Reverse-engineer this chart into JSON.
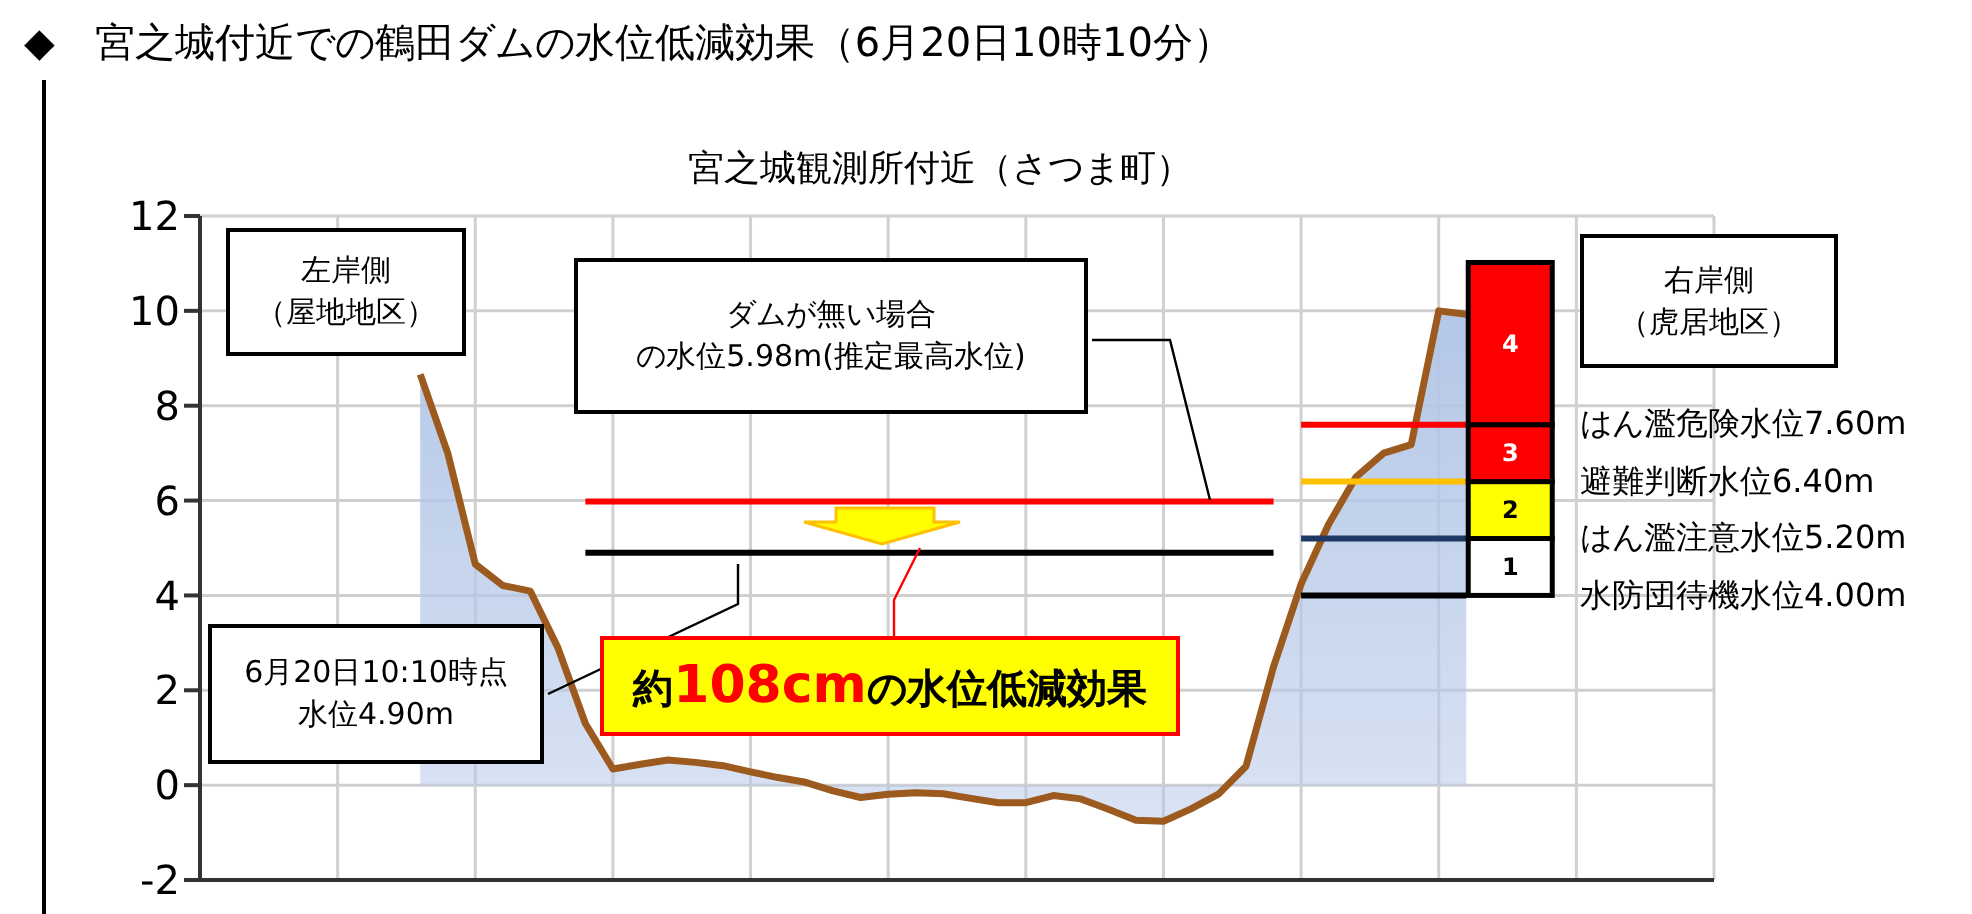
{
  "chart_data": {
    "type": "line",
    "title": "◆　宮之城付近での鶴田ダムの水位低減効果（6月20日10時10分）",
    "subtitle": "宮之城観測所付近（さつま町）",
    "annotations": [
      "左岸側",
      "（屋地地区）",
      "右岸側",
      "（虎居地区）",
      "ダムが無い場合",
      "の水位5.98m(推定最高水位)",
      "6月20日10:10時点",
      "水位4.90m",
      "約108cmの水位低減効果",
      "1",
      "2",
      "3",
      "4"
    ],
    "categories": [
      null,
      null,
      null,
      null,
      null,
      null,
      null,
      null,
      null,
      null,
      null,
      null,
      null,
      null,
      null,
      null,
      null,
      null,
      null,
      null,
      null,
      null,
      null,
      null,
      null,
      null,
      null,
      null,
      null,
      null,
      null,
      null,
      null,
      null,
      null,
      null,
      null,
      null,
      null
    ],
    "ylim": [
      -2,
      12
    ],
    "yticks": [
      -2,
      0,
      2,
      4,
      6,
      8,
      10,
      12
    ],
    "grid": true,
    "tick_labels": "y",
    "marker": "none",
    "series": [
      {
        "type": "area",
        "color": "#9c5a1e",
        "values": [
          8.66,
          7.0,
          4.66,
          4.21,
          4.09,
          2.9,
          1.3,
          0.34,
          0.44,
          0.53,
          0.48,
          0.41,
          0.28,
          0.16,
          0.06,
          -0.12,
          -0.26,
          -0.19,
          -0.16,
          -0.18,
          -0.28,
          -0.37,
          -0.37,
          -0.22,
          -0.29,
          -0.51,
          -0.74,
          -0.76,
          -0.5,
          -0.19,
          0.4,
          2.5,
          4.24,
          5.5,
          6.5,
          7.0,
          7.18,
          10.0,
          9.93
        ]
      },
      {
        "color": "#ff0000",
        "values": [
          null,
          null,
          null,
          null,
          null,
          null,
          5.98,
          5.98,
          5.98,
          5.98,
          5.98,
          5.98,
          5.98,
          5.98,
          5.98,
          5.98,
          5.98,
          5.98,
          5.98,
          5.98,
          5.98,
          5.98,
          5.98,
          5.98,
          5.98,
          5.98,
          5.98,
          5.98,
          5.98,
          5.98,
          5.98,
          5.98,
          null,
          null,
          null,
          null,
          null,
          null,
          null
        ]
      },
      {
        "color": "#000000",
        "values": [
          null,
          null,
          null,
          null,
          null,
          null,
          4.9,
          4.9,
          4.9,
          4.9,
          4.9,
          4.9,
          4.9,
          4.9,
          4.9,
          4.9,
          4.9,
          4.9,
          4.9,
          4.9,
          4.9,
          4.9,
          4.9,
          4.9,
          4.9,
          4.9,
          4.9,
          4.9,
          4.9,
          4.9,
          4.9,
          4.9,
          null,
          null,
          null,
          null,
          null,
          null,
          null
        ]
      },
      {
        "name": "はん濫危険水位7.60m",
        "color": "#ff0000",
        "values": [
          null,
          null,
          null,
          null,
          null,
          null,
          null,
          null,
          null,
          null,
          null,
          null,
          null,
          null,
          null,
          null,
          null,
          null,
          null,
          null,
          null,
          null,
          null,
          null,
          null,
          null,
          null,
          null,
          null,
          null,
          null,
          null,
          7.6,
          7.6,
          7.6,
          7.6,
          7.6,
          7.6,
          7.6
        ]
      },
      {
        "name": "避難判断水位6.40m",
        "color": "#ffc000",
        "values": [
          null,
          null,
          null,
          null,
          null,
          null,
          null,
          null,
          null,
          null,
          null,
          null,
          null,
          null,
          null,
          null,
          null,
          null,
          null,
          null,
          null,
          null,
          null,
          null,
          null,
          null,
          null,
          null,
          null,
          null,
          null,
          null,
          6.4,
          6.4,
          6.4,
          6.4,
          6.4,
          6.4,
          6.4
        ]
      },
      {
        "name": "はん濫注意水位5.20m",
        "color": "#1f3864",
        "values": [
          null,
          null,
          null,
          null,
          null,
          null,
          null,
          null,
          null,
          null,
          null,
          null,
          null,
          null,
          null,
          null,
          null,
          null,
          null,
          null,
          null,
          null,
          null,
          null,
          null,
          null,
          null,
          null,
          null,
          null,
          null,
          null,
          5.2,
          5.2,
          5.2,
          5.2,
          5.2,
          5.2,
          5.2
        ]
      },
      {
        "name": "水防団待機水位4.00m",
        "color": "#000000",
        "values": [
          null,
          null,
          null,
          null,
          null,
          null,
          null,
          null,
          null,
          null,
          null,
          null,
          null,
          null,
          null,
          null,
          null,
          null,
          null,
          null,
          null,
          null,
          null,
          null,
          null,
          null,
          null,
          null,
          null,
          null,
          null,
          null,
          4.0,
          4.0,
          4.0,
          4.0,
          4.0,
          4.0,
          4.0
        ]
      }
    ]
  }
}
